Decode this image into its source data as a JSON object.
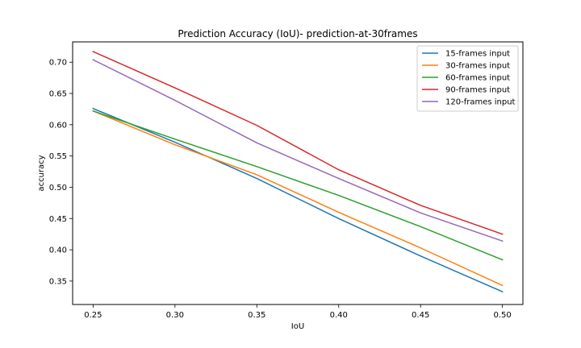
{
  "chart_data": {
    "type": "line",
    "title": "Prediction Accuracy (IoU)- prediction-at-30frames",
    "xlabel": "IoU",
    "ylabel": "accuracy",
    "x": [
      0.25,
      0.3,
      0.35,
      0.4,
      0.45,
      0.5
    ],
    "xlim": [
      0.2375,
      0.5125
    ],
    "ylim": [
      0.3125,
      0.7325
    ],
    "xticks": [
      "0.25",
      "0.30",
      "0.35",
      "0.40",
      "0.45",
      "0.50"
    ],
    "yticks": [
      "0.35",
      "0.40",
      "0.45",
      "0.50",
      "0.55",
      "0.60",
      "0.65",
      "0.70"
    ],
    "grid": false,
    "legend_position": "top-right",
    "series": [
      {
        "name": "15-frames input",
        "color": "#1f77b4",
        "values": [
          0.626,
          0.572,
          0.514,
          0.45,
          0.39,
          0.333
        ]
      },
      {
        "name": "30-frames input",
        "color": "#ff7f0e",
        "values": [
          0.622,
          0.568,
          0.52,
          0.46,
          0.403,
          0.343
        ]
      },
      {
        "name": "60-frames input",
        "color": "#2ca02c",
        "values": [
          0.622,
          0.577,
          0.533,
          0.487,
          0.437,
          0.384
        ]
      },
      {
        "name": "90-frames input",
        "color": "#d62728",
        "values": [
          0.717,
          0.659,
          0.599,
          0.528,
          0.471,
          0.425
        ]
      },
      {
        "name": "120-frames input",
        "color": "#9467bd",
        "values": [
          0.704,
          0.639,
          0.571,
          0.514,
          0.459,
          0.414
        ]
      }
    ]
  }
}
